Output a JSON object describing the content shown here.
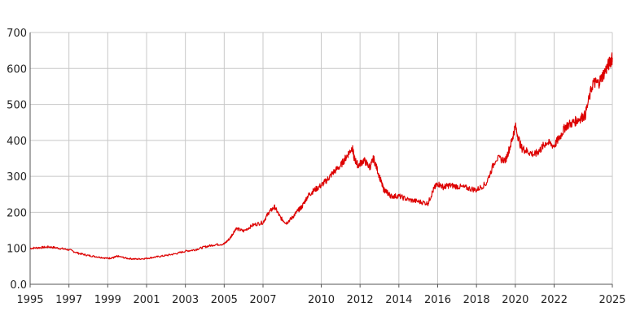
{
  "chart_data": {
    "type": "line",
    "title": "",
    "xlabel": "",
    "ylabel": "",
    "xlim": [
      1995,
      2025
    ],
    "ylim": [
      0,
      700
    ],
    "grid": true,
    "legend": "none",
    "x_ticks": [
      1995,
      1997,
      1999,
      2001,
      2003,
      2005,
      2007,
      2010,
      2012,
      2014,
      2016,
      2018,
      2020,
      2022,
      2025
    ],
    "x_tick_labels": [
      "1995",
      "1997",
      "1999",
      "2001",
      "2003",
      "2005",
      "2007",
      "2010",
      "2012",
      "2014",
      "2016",
      "2018",
      "2020",
      "2022",
      "2025"
    ],
    "y_ticks": [
      0,
      100,
      200,
      300,
      400,
      500,
      600,
      700
    ],
    "y_tick_labels": [
      "0.0",
      "100",
      "200",
      "300",
      "400",
      "500",
      "600",
      "700"
    ],
    "colors": {
      "series": "#dd0000",
      "grid": "#c8c8c8"
    },
    "series": [
      {
        "x": [
          1995.0,
          1995.5,
          1996.0,
          1996.5,
          1997.0,
          1997.5,
          1998.0,
          1998.5,
          1999.0,
          1999.3,
          1999.5,
          2000.0,
          2000.5,
          2001.0,
          2001.5,
          2002.0,
          2002.5,
          2003.0,
          2003.5,
          2004.0,
          2004.5,
          2005.0,
          2005.3,
          2005.6,
          2006.0,
          2006.5,
          2007.0,
          2007.3,
          2007.6,
          2007.9,
          2008.2,
          2008.5,
          2008.8,
          2009.0,
          2009.3,
          2009.6,
          2010.0,
          2010.3,
          2010.6,
          2011.0,
          2011.3,
          2011.6,
          2011.7,
          2011.9,
          2012.2,
          2012.5,
          2012.7,
          2013.0,
          2013.2,
          2013.4,
          2013.6,
          2014.0,
          2014.5,
          2015.0,
          2015.5,
          2015.8,
          2016.0,
          2016.3,
          2016.6,
          2017.0,
          2017.5,
          2018.0,
          2018.5,
          2019.0,
          2019.5,
          2019.8,
          2020.0,
          2020.3,
          2020.6,
          2021.0,
          2021.3,
          2021.6,
          2022.0,
          2022.3,
          2022.6,
          2023.0,
          2023.3,
          2023.6,
          2024.0,
          2024.3,
          2024.6,
          2024.9,
          2025.0
        ],
        "y": [
          100,
          102,
          104,
          100,
          96,
          86,
          80,
          76,
          72,
          74,
          78,
          72,
          70,
          72,
          76,
          80,
          85,
          92,
          96,
          104,
          110,
          112,
          128,
          155,
          148,
          165,
          172,
          200,
          215,
          185,
          170,
          185,
          205,
          215,
          245,
          260,
          275,
          290,
          310,
          330,
          355,
          380,
          350,
          330,
          345,
          325,
          350,
          300,
          265,
          255,
          245,
          245,
          235,
          230,
          225,
          265,
          280,
          270,
          275,
          272,
          268,
          262,
          280,
          350,
          345,
          395,
          440,
          380,
          370,
          360,
          375,
          395,
          385,
          410,
          440,
          450,
          460,
          470,
          560,
          560,
          590,
          620,
          630
        ]
      }
    ]
  }
}
